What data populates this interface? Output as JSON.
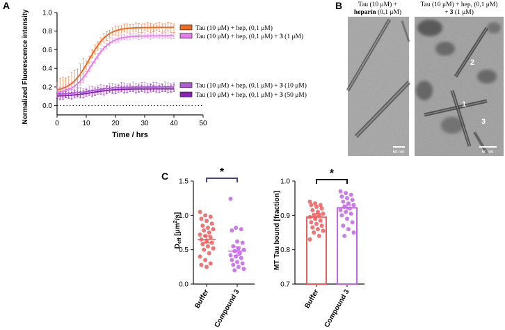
{
  "panels": {
    "A": "A",
    "B": "B",
    "C": "C"
  },
  "chart_data": [
    {
      "type": "line",
      "panel": "A",
      "title": "",
      "xlabel": "Time / hrs",
      "ylabel": "Normalized Fluorescence intensity",
      "xlim": [
        0,
        50
      ],
      "ylim": [
        -0.1,
        1.0
      ],
      "x_ticks": [
        0,
        10,
        20,
        30,
        40,
        50
      ],
      "y_ticks": [
        0.0,
        0.2,
        0.4,
        0.6,
        0.8,
        1.0
      ],
      "x_tick_labels": [
        "0",
        "10",
        "20",
        "30",
        "40",
        "50"
      ],
      "y_tick_labels": [
        "0.0",
        "0.2",
        "0.4",
        "0.6",
        "0.8",
        "1.0"
      ],
      "baseline": 0,
      "series": [
        {
          "name": "Tau (10 μM) + hep, (0,1 μM)",
          "color": "#F26B1F",
          "fit": {
            "start": 0.15,
            "end": 0.84,
            "mid": 11,
            "k": 0.32
          },
          "error": 0.05,
          "error_early": 0.12
        },
        {
          "name": "Tau (10 μM) + hep, (0,1 μM) + 3 (1 μM)",
          "color": "#E87BEF",
          "fit": {
            "start": 0.13,
            "end": 0.75,
            "mid": 12,
            "k": 0.32
          },
          "error": 0.03,
          "error_early": 0.06
        },
        {
          "name": "Tau (10 μM) + hep, (0,1 μM) + 3 (10 μM)",
          "color": "#B05BD6",
          "fit": {
            "start": 0.12,
            "end": 0.2,
            "mid": 12,
            "k": 0.25
          },
          "error": 0.05,
          "error_early": 0.05
        },
        {
          "name": "Tau (10 μM) + hep, (0,1 μM) + 3 (50 μM)",
          "color": "#8B1FB8",
          "fit": {
            "start": 0.1,
            "end": 0.18,
            "mid": 12,
            "k": 0.25
          },
          "error": 0.04,
          "error_early": 0.04
        }
      ]
    },
    {
      "type": "scatter",
      "panel": "C-left",
      "xlabel": "",
      "ylabel": "D_eff [μm²/s]",
      "ylabel_main": "D",
      "ylabel_sub": "eff",
      "ylabel_rest": " [μm",
      "ylabel_sup": "2",
      "ylabel_end": "/s]",
      "ylim": [
        0.0,
        1.5
      ],
      "y_ticks": [
        0.0,
        0.5,
        1.0,
        1.5
      ],
      "y_tick_labels": [
        "0.0",
        "0.5",
        "1.0",
        "1.5"
      ],
      "categories": [
        "Buffer",
        "Compound 3"
      ],
      "significance": "*",
      "groups": [
        {
          "name": "Buffer",
          "color": "#F05A5A",
          "mean": 0.65,
          "sem": 0.05,
          "points": [
            1.05,
            1.0,
            0.98,
            0.95,
            0.92,
            0.88,
            0.85,
            0.82,
            0.8,
            0.78,
            0.75,
            0.72,
            0.7,
            0.68,
            0.65,
            0.62,
            0.6,
            0.58,
            0.55,
            0.52,
            0.5,
            0.45,
            0.4,
            0.35,
            0.3,
            0.28,
            0.25
          ]
        },
        {
          "name": "Compound 3",
          "color": "#C165E6",
          "mean": 0.48,
          "sem": 0.06,
          "points": [
            1.24,
            0.82,
            0.8,
            0.78,
            0.62,
            0.6,
            0.55,
            0.52,
            0.5,
            0.48,
            0.45,
            0.42,
            0.4,
            0.38,
            0.35,
            0.32,
            0.3,
            0.28,
            0.25,
            0.22,
            0.2
          ]
        }
      ]
    },
    {
      "type": "bar",
      "panel": "C-right",
      "xlabel": "",
      "ylabel": "MT Tau bound [fraction]",
      "ylim": [
        0.7,
        1.0
      ],
      "y_ticks": [
        0.7,
        0.8,
        0.9,
        1.0
      ],
      "y_tick_labels": [
        "0.7",
        "0.8",
        "0.9",
        "1.0"
      ],
      "categories": [
        "Buffer",
        "Compound 3"
      ],
      "significance": "*",
      "groups": [
        {
          "name": "Buffer",
          "color": "#F05A5A",
          "mean": 0.895,
          "sem": 0.01,
          "points": [
            0.94,
            0.935,
            0.93,
            0.93,
            0.925,
            0.92,
            0.915,
            0.91,
            0.905,
            0.9,
            0.9,
            0.895,
            0.89,
            0.885,
            0.88,
            0.875,
            0.87,
            0.865,
            0.86,
            0.855,
            0.85,
            0.84,
            0.83
          ]
        },
        {
          "name": "Compound 3",
          "color": "#C165E6",
          "mean": 0.922,
          "sem": 0.008,
          "points": [
            0.97,
            0.965,
            0.96,
            0.955,
            0.95,
            0.945,
            0.94,
            0.935,
            0.93,
            0.925,
            0.92,
            0.915,
            0.91,
            0.905,
            0.9,
            0.89,
            0.88,
            0.87,
            0.86,
            0.85,
            0.84
          ]
        }
      ]
    }
  ],
  "micrographs": {
    "left": {
      "caption_line1": "Tau (10 μM) +",
      "caption_bold": "heparin",
      "caption_line2_rest": " (0,1 μM)",
      "scale_bar": "50 nm"
    },
    "right": {
      "caption_line1": "Tau (10 μM) + hep, (0,1 μM)",
      "caption_line2_pre": "+ ",
      "caption_bold": "3",
      "caption_line2_post": " (1 μM)",
      "scale_bar": "50 nm",
      "fibril_labels": [
        "1",
        "2",
        "3"
      ]
    }
  },
  "colors": {
    "axis": "#111111",
    "bracket": "#4B3F8F",
    "micro_bg": "#9a9a9a"
  }
}
